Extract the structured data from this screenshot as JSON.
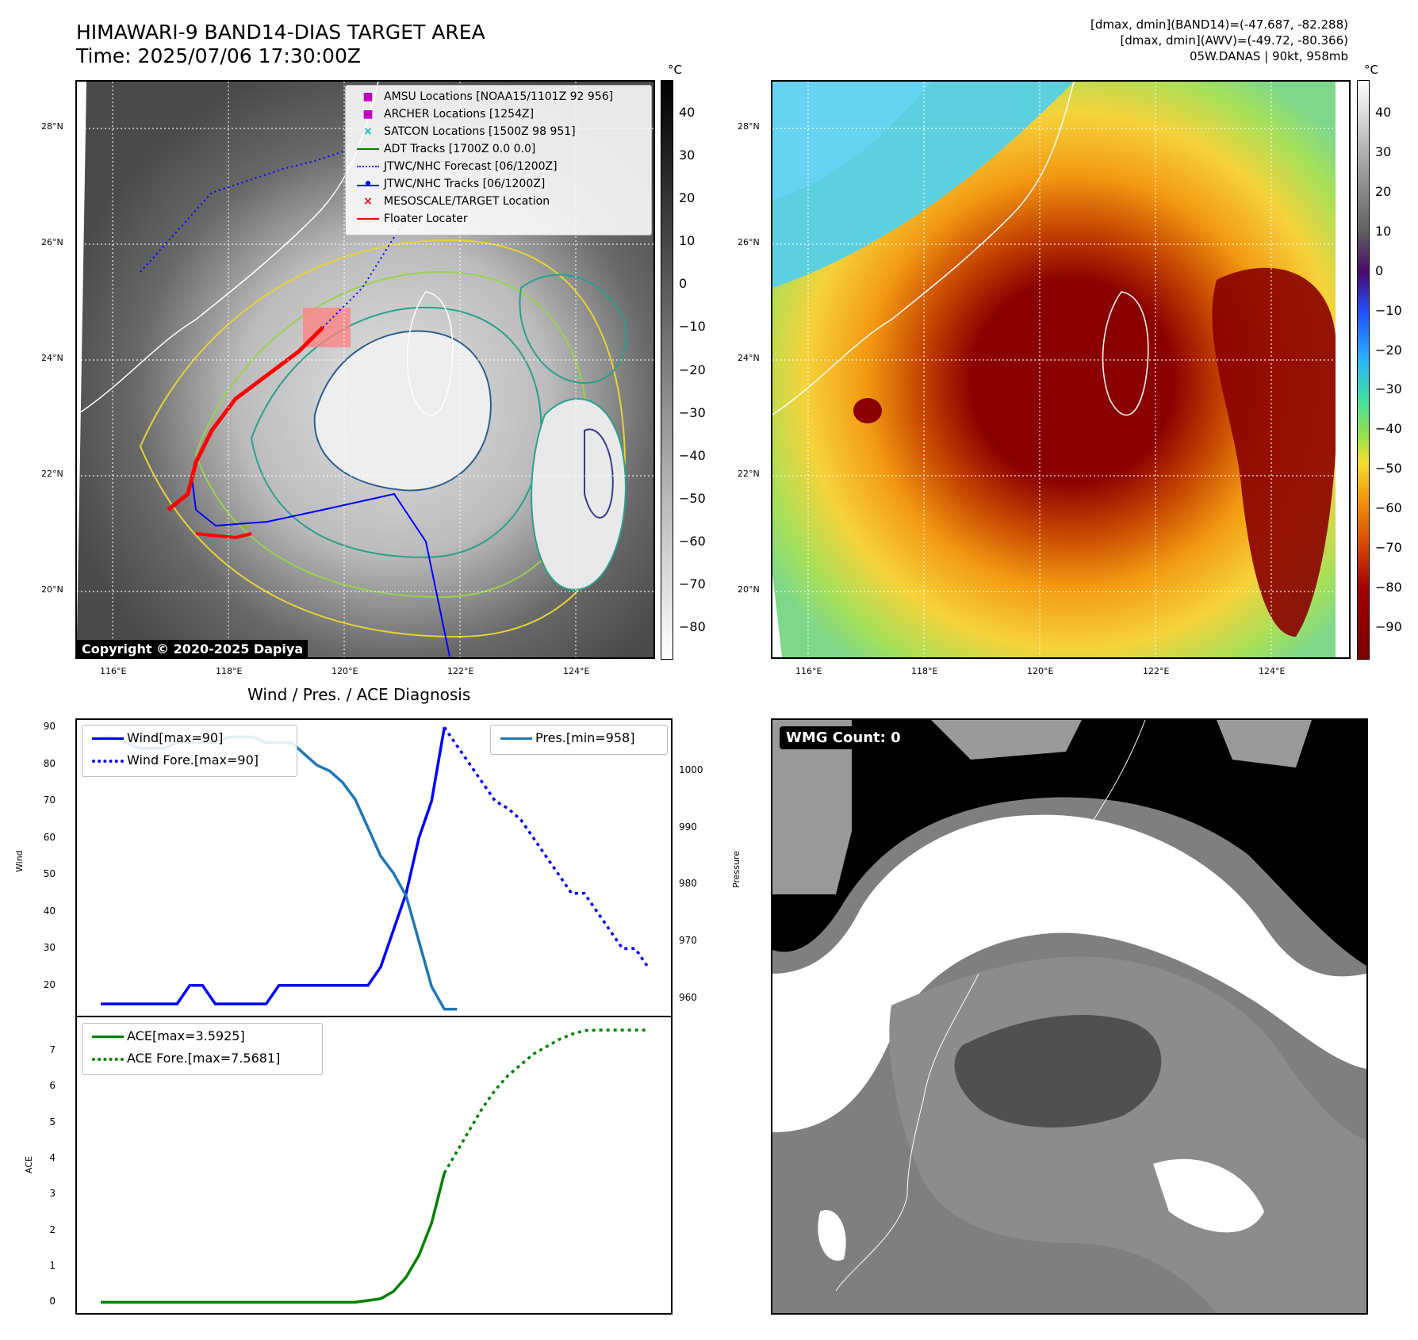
{
  "header": {
    "title_line1": "HIMAWARI-9 BAND14-DIAS TARGET AREA",
    "title_line2": "Time: 2025/07/06 17:30:00Z",
    "right_line1": "[dmax, dmin](BAND14)=(-47.687, -82.288)",
    "right_line2": "[dmax, dmin](AWV)=(-49.72, -80.366)",
    "right_line3": "05W.DANAS | 90kt, 958mb"
  },
  "map": {
    "lat_labels": [
      "28°N",
      "26°N",
      "24°N",
      "22°N",
      "20°N"
    ],
    "lon_labels": [
      "116°E",
      "118°E",
      "120°E",
      "122°E",
      "124°E"
    ],
    "copyright": "Copyright © 2020-2025 Dapiya"
  },
  "colorbar_left": {
    "unit": "°C",
    "ticks": [
      "40",
      "30",
      "20",
      "10",
      "0",
      "−10",
      "−20",
      "−30",
      "−40",
      "−50",
      "−60",
      "−70",
      "−80"
    ]
  },
  "colorbar_right": {
    "unit": "°C",
    "ticks": [
      "40",
      "30",
      "20",
      "10",
      "0",
      "−10",
      "−20",
      "−30",
      "−40",
      "−50",
      "−60",
      "−70",
      "−80",
      "−90"
    ]
  },
  "legend": {
    "items": [
      {
        "label": "AMSU Locations [NOAA15/1101Z 92 956]",
        "color": "#c000c0",
        "symbol": "square"
      },
      {
        "label": "ARCHER Locations [1254Z]",
        "color": "#c000c0",
        "symbol": "square"
      },
      {
        "label": "SATCON Locations [1500Z 98 951]",
        "color": "#00c0c0",
        "symbol": "x"
      },
      {
        "label": "ADT Tracks [1700Z 0.0 0.0]",
        "color": "#008000",
        "symbol": "line"
      },
      {
        "label": "JTWC/NHC Forecast [06/1200Z]",
        "color": "#0000ff",
        "symbol": "dotted"
      },
      {
        "label": "JTWC/NHC Tracks [06/1200Z]",
        "color": "#0000ff",
        "symbol": "line-dot"
      },
      {
        "label": "MESOSCALE/TARGET Location",
        "color": "#ff0000",
        "symbol": "x"
      },
      {
        "label": "Floater Locater",
        "color": "#ff0000",
        "symbol": "line"
      }
    ]
  },
  "wmg": {
    "label": "WMG Count: 0"
  },
  "chart_data": [
    {
      "type": "line",
      "title": "Wind / Pres. / ACE Diagnosis",
      "ylabel": "Wind",
      "ylim": [
        12,
        92
      ],
      "yticks": [
        "90",
        "80",
        "70",
        "60",
        "50",
        "40",
        "30",
        "20"
      ],
      "y2label": "Pressure",
      "y2lim": [
        957,
        1009
      ],
      "y2ticks": [
        "1000",
        "990",
        "980",
        "970",
        "960"
      ],
      "series": [
        {
          "name": "Wind[max=90]",
          "axis": "left",
          "color": "#0000ff",
          "style": "solid",
          "x": [
            0,
            1,
            2,
            3,
            4,
            5,
            6,
            7,
            8,
            9,
            10,
            11,
            12,
            13,
            14,
            15,
            16,
            17,
            18,
            19,
            20,
            21,
            22,
            23,
            24,
            25,
            26,
            27
          ],
          "values": [
            15,
            15,
            15,
            15,
            15,
            15,
            15,
            20,
            20,
            15,
            15,
            15,
            15,
            15,
            20,
            20,
            20,
            20,
            20,
            20,
            20,
            20,
            25,
            35,
            45,
            60,
            70,
            90
          ]
        },
        {
          "name": "Wind Fore.[max=90]",
          "axis": "left",
          "color": "#0000ff",
          "style": "dotted",
          "x": [
            27,
            28,
            29,
            30,
            31,
            32,
            33,
            34,
            35,
            36,
            37,
            38,
            39,
            40,
            41,
            42,
            43
          ],
          "values": [
            90,
            85,
            80,
            75,
            70,
            68,
            65,
            60,
            55,
            50,
            45,
            45,
            40,
            35,
            30,
            30,
            25
          ]
        },
        {
          "name": "Pres.[min=958]",
          "axis": "right",
          "color": "#1f77b4",
          "style": "solid",
          "x": [
            0,
            1,
            2,
            3,
            4,
            5,
            6,
            7,
            8,
            9,
            10,
            11,
            12,
            13,
            14,
            15,
            16,
            17,
            18,
            19,
            20,
            21,
            22,
            23,
            24,
            25,
            26,
            27,
            28
          ],
          "values": [
            1006,
            1006,
            1005,
            1004,
            1004,
            1004,
            1005,
            1005,
            1005,
            1005,
            1006,
            1006,
            1006,
            1005,
            1005,
            1005,
            1003,
            1001,
            1000,
            998,
            995,
            990,
            985,
            982,
            978,
            970,
            962,
            958,
            958
          ]
        }
      ]
    },
    {
      "type": "line",
      "ylabel": "ACE",
      "ylim": [
        -0.3,
        7.9
      ],
      "yticks": [
        "7",
        "6",
        "5",
        "4",
        "3",
        "2",
        "1",
        "0"
      ],
      "series": [
        {
          "name": "ACE[max=3.5925]",
          "color": "#008000",
          "style": "solid",
          "x": [
            0,
            4,
            8,
            12,
            16,
            20,
            22,
            23,
            24,
            25,
            26,
            27
          ],
          "values": [
            0,
            0,
            0,
            0,
            0,
            0,
            0.1,
            0.3,
            0.7,
            1.3,
            2.2,
            3.5925
          ]
        },
        {
          "name": "ACE Fore.[max=7.5681]",
          "color": "#008000",
          "style": "dotted",
          "x": [
            27,
            28,
            29,
            30,
            31,
            32,
            33,
            34,
            35,
            36,
            37,
            38,
            39,
            40,
            41,
            42,
            43
          ],
          "values": [
            3.5925,
            4.2,
            4.8,
            5.4,
            5.9,
            6.3,
            6.6,
            6.9,
            7.1,
            7.3,
            7.45,
            7.55,
            7.5681,
            7.5681,
            7.5681,
            7.5681,
            7.5681
          ]
        }
      ]
    }
  ]
}
